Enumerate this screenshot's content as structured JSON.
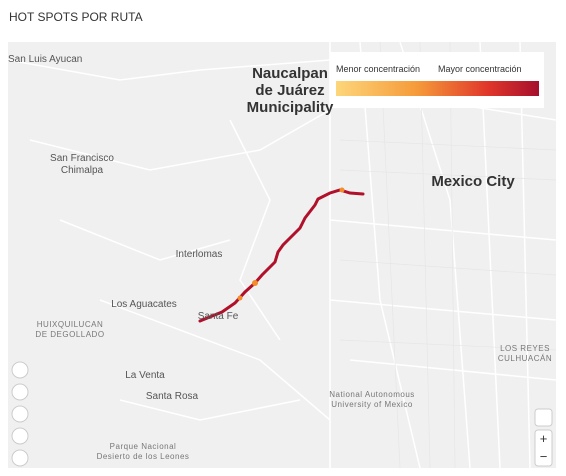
{
  "header": {
    "title": "HOT SPOTS POR RUTA"
  },
  "legend": {
    "low": "Menor concentración",
    "high": "Mayor concentración"
  },
  "map": {
    "labels": [
      {
        "lines": [
          "San Luis Ayucan"
        ]
      },
      {
        "lines": [
          "Naucalpan",
          "de Juárez",
          "Municipality"
        ]
      },
      {
        "lines": [
          "San Francisco",
          "Chimalpa"
        ]
      },
      {
        "lines": [
          "Mexico City"
        ]
      },
      {
        "lines": [
          "Interlomas"
        ]
      },
      {
        "lines": [
          "Los Aguacates"
        ]
      },
      {
        "lines": [
          "HUIXQUILUCAN",
          "DE DEGOLLADO"
        ]
      },
      {
        "lines": [
          "Santa Fe"
        ]
      },
      {
        "lines": [
          "La Venta"
        ]
      },
      {
        "lines": [
          "Santa Rosa"
        ]
      },
      {
        "lines": [
          "National Autonomous",
          "University of Mexico"
        ]
      },
      {
        "lines": [
          "Parque Nacional",
          "Desierto de los Leones"
        ]
      },
      {
        "lines": [
          "LOS REYES",
          "CULHUACÁN"
        ]
      }
    ]
  },
  "controls": {
    "zoom_in": "+",
    "zoom_out": "−"
  }
}
